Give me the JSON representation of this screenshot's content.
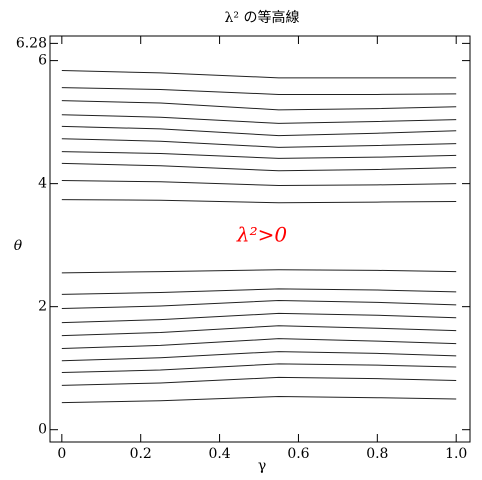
{
  "chart_data": {
    "type": "contour",
    "title": "λ² の等高線",
    "x_label": "γ",
    "y_label": "θ",
    "annotations": [
      {
        "text": "λ²>0",
        "color": "#ff0000"
      }
    ],
    "xlim": [
      -0.03,
      1.035
    ],
    "ylim": [
      -0.2,
      6.4
    ],
    "xticks": [
      0,
      0.2,
      0.4,
      0.6,
      0.8,
      {
        "value": 1,
        "label": "1.0"
      }
    ],
    "yticks": [
      0,
      2,
      4,
      6,
      6.28
    ],
    "color": "#222222",
    "x": [
      0,
      0.25,
      0.55,
      0.8,
      1.0
    ],
    "series": [
      {
        "values": [
          5.84,
          5.8,
          5.72,
          5.72,
          5.72
        ]
      },
      {
        "values": [
          5.56,
          5.53,
          5.45,
          5.45,
          5.46
        ]
      },
      {
        "values": [
          5.35,
          5.31,
          5.2,
          5.22,
          5.25
        ]
      },
      {
        "values": [
          5.12,
          5.08,
          4.98,
          5.01,
          5.04
        ]
      },
      {
        "values": [
          4.93,
          4.89,
          4.78,
          4.82,
          4.86
        ]
      },
      {
        "values": [
          4.73,
          4.69,
          4.59,
          4.62,
          4.65
        ]
      },
      {
        "values": [
          4.52,
          4.49,
          4.41,
          4.43,
          4.46
        ]
      },
      {
        "values": [
          4.33,
          4.29,
          4.21,
          4.23,
          4.26
        ]
      },
      {
        "values": [
          4.05,
          4.03,
          3.97,
          3.98,
          4.0
        ]
      },
      {
        "values": [
          3.74,
          3.73,
          3.69,
          3.7,
          3.71
        ]
      },
      {
        "values": [
          2.55,
          2.57,
          2.6,
          2.59,
          2.57
        ]
      },
      {
        "values": [
          2.2,
          2.23,
          2.29,
          2.27,
          2.24
        ]
      },
      {
        "values": [
          1.97,
          2.01,
          2.1,
          2.07,
          2.03
        ]
      },
      {
        "values": [
          1.74,
          1.79,
          1.89,
          1.86,
          1.82
        ]
      },
      {
        "values": [
          1.53,
          1.58,
          1.69,
          1.65,
          1.61
        ]
      },
      {
        "values": [
          1.32,
          1.37,
          1.48,
          1.44,
          1.4
        ]
      },
      {
        "values": [
          1.12,
          1.17,
          1.27,
          1.24,
          1.2
        ]
      },
      {
        "values": [
          0.93,
          0.97,
          1.07,
          1.05,
          1.02
        ]
      },
      {
        "values": [
          0.72,
          0.76,
          0.85,
          0.83,
          0.8
        ]
      },
      {
        "values": [
          0.44,
          0.47,
          0.54,
          0.52,
          0.5
        ]
      }
    ]
  }
}
